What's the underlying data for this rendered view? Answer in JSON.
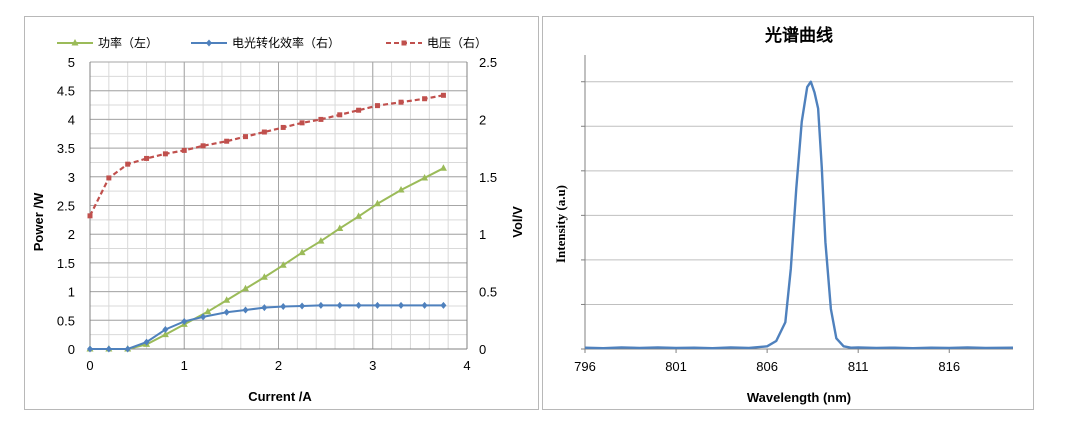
{
  "chart_data": [
    {
      "type": "line",
      "title": "",
      "xlabel": "Current /A",
      "ylabel_left": "Power /W",
      "ylabel_right": "Vol/V",
      "xlim": [
        0,
        4
      ],
      "ylim_left": [
        0,
        5
      ],
      "ylim_right": [
        0,
        2.5
      ],
      "x_ticks": [
        "0",
        "1",
        "2",
        "3",
        "4"
      ],
      "y_ticks_left": [
        "0",
        "0.5",
        "1",
        "1.5",
        "2",
        "2.5",
        "3",
        "3.5",
        "4",
        "4.5",
        "5"
      ],
      "y_ticks_right": [
        "0",
        "0.5",
        "1",
        "1.5",
        "2",
        "2.5"
      ],
      "grid": true,
      "legend_position": "top",
      "series": [
        {
          "name": "功率（左）",
          "axis": "left",
          "color": "#9bbb59",
          "marker": "triangle",
          "x": [
            0,
            0.2,
            0.4,
            0.6,
            0.8,
            1.0,
            1.25,
            1.45,
            1.65,
            1.85,
            2.05,
            2.25,
            2.45,
            2.65,
            2.85,
            3.05,
            3.3,
            3.55,
            3.75
          ],
          "y": [
            0,
            0,
            0,
            0.08,
            0.25,
            0.43,
            0.65,
            0.85,
            1.05,
            1.25,
            1.46,
            1.68,
            1.88,
            2.1,
            2.31,
            2.53,
            2.77,
            2.98,
            3.15
          ]
        },
        {
          "name": "电光转化效率（右）",
          "axis": "right",
          "color": "#4f81bd",
          "marker": "diamond",
          "x": [
            0,
            0.2,
            0.4,
            0.6,
            0.8,
            1.0,
            1.2,
            1.45,
            1.65,
            1.85,
            2.05,
            2.25,
            2.45,
            2.65,
            2.85,
            3.05,
            3.3,
            3.55,
            3.75
          ],
          "y": [
            0,
            0,
            0,
            0.06,
            0.17,
            0.24,
            0.28,
            0.32,
            0.34,
            0.36,
            0.37,
            0.375,
            0.38,
            0.38,
            0.38,
            0.38,
            0.38,
            0.38,
            0.38
          ]
        },
        {
          "name": "电压（右）",
          "axis": "right",
          "color": "#c0504d",
          "marker": "square",
          "style": "dashed",
          "x": [
            0,
            0.2,
            0.4,
            0.6,
            0.8,
            1.0,
            1.2,
            1.45,
            1.65,
            1.85,
            2.05,
            2.25,
            2.45,
            2.65,
            2.85,
            3.05,
            3.3,
            3.55,
            3.75
          ],
          "y": [
            1.16,
            1.49,
            1.61,
            1.66,
            1.7,
            1.73,
            1.77,
            1.81,
            1.85,
            1.89,
            1.93,
            1.97,
            2.0,
            2.04,
            2.08,
            2.12,
            2.15,
            2.18,
            2.21
          ]
        }
      ]
    },
    {
      "type": "line",
      "title": "光谱曲线",
      "xlabel": "Wavelength (nm)",
      "ylabel": "Intensity (a.u)",
      "xlim": [
        796,
        819.5
      ],
      "ylim": [
        0,
        1.1
      ],
      "x_ticks": [
        "796",
        "801",
        "806",
        "811",
        "816"
      ],
      "grid": "horizontal",
      "series": [
        {
          "name": "",
          "color": "#4f81bd",
          "x": [
            796,
            797,
            798,
            799,
            800,
            801,
            802,
            803,
            804,
            805,
            806,
            806.5,
            807,
            807.3,
            807.6,
            807.9,
            808.2,
            808.4,
            808.6,
            808.8,
            809.0,
            809.2,
            809.5,
            809.8,
            810.2,
            810.6,
            811,
            812,
            813,
            814,
            815,
            816,
            817,
            818,
            819.5
          ],
          "y": [
            0.005,
            0.003,
            0.006,
            0.004,
            0.006,
            0.004,
            0.005,
            0.003,
            0.006,
            0.004,
            0.01,
            0.03,
            0.1,
            0.3,
            0.6,
            0.85,
            0.98,
            1.0,
            0.96,
            0.9,
            0.68,
            0.4,
            0.15,
            0.04,
            0.01,
            0.005,
            0.006,
            0.004,
            0.005,
            0.003,
            0.005,
            0.004,
            0.006,
            0.004,
            0.005
          ]
        }
      ]
    }
  ]
}
